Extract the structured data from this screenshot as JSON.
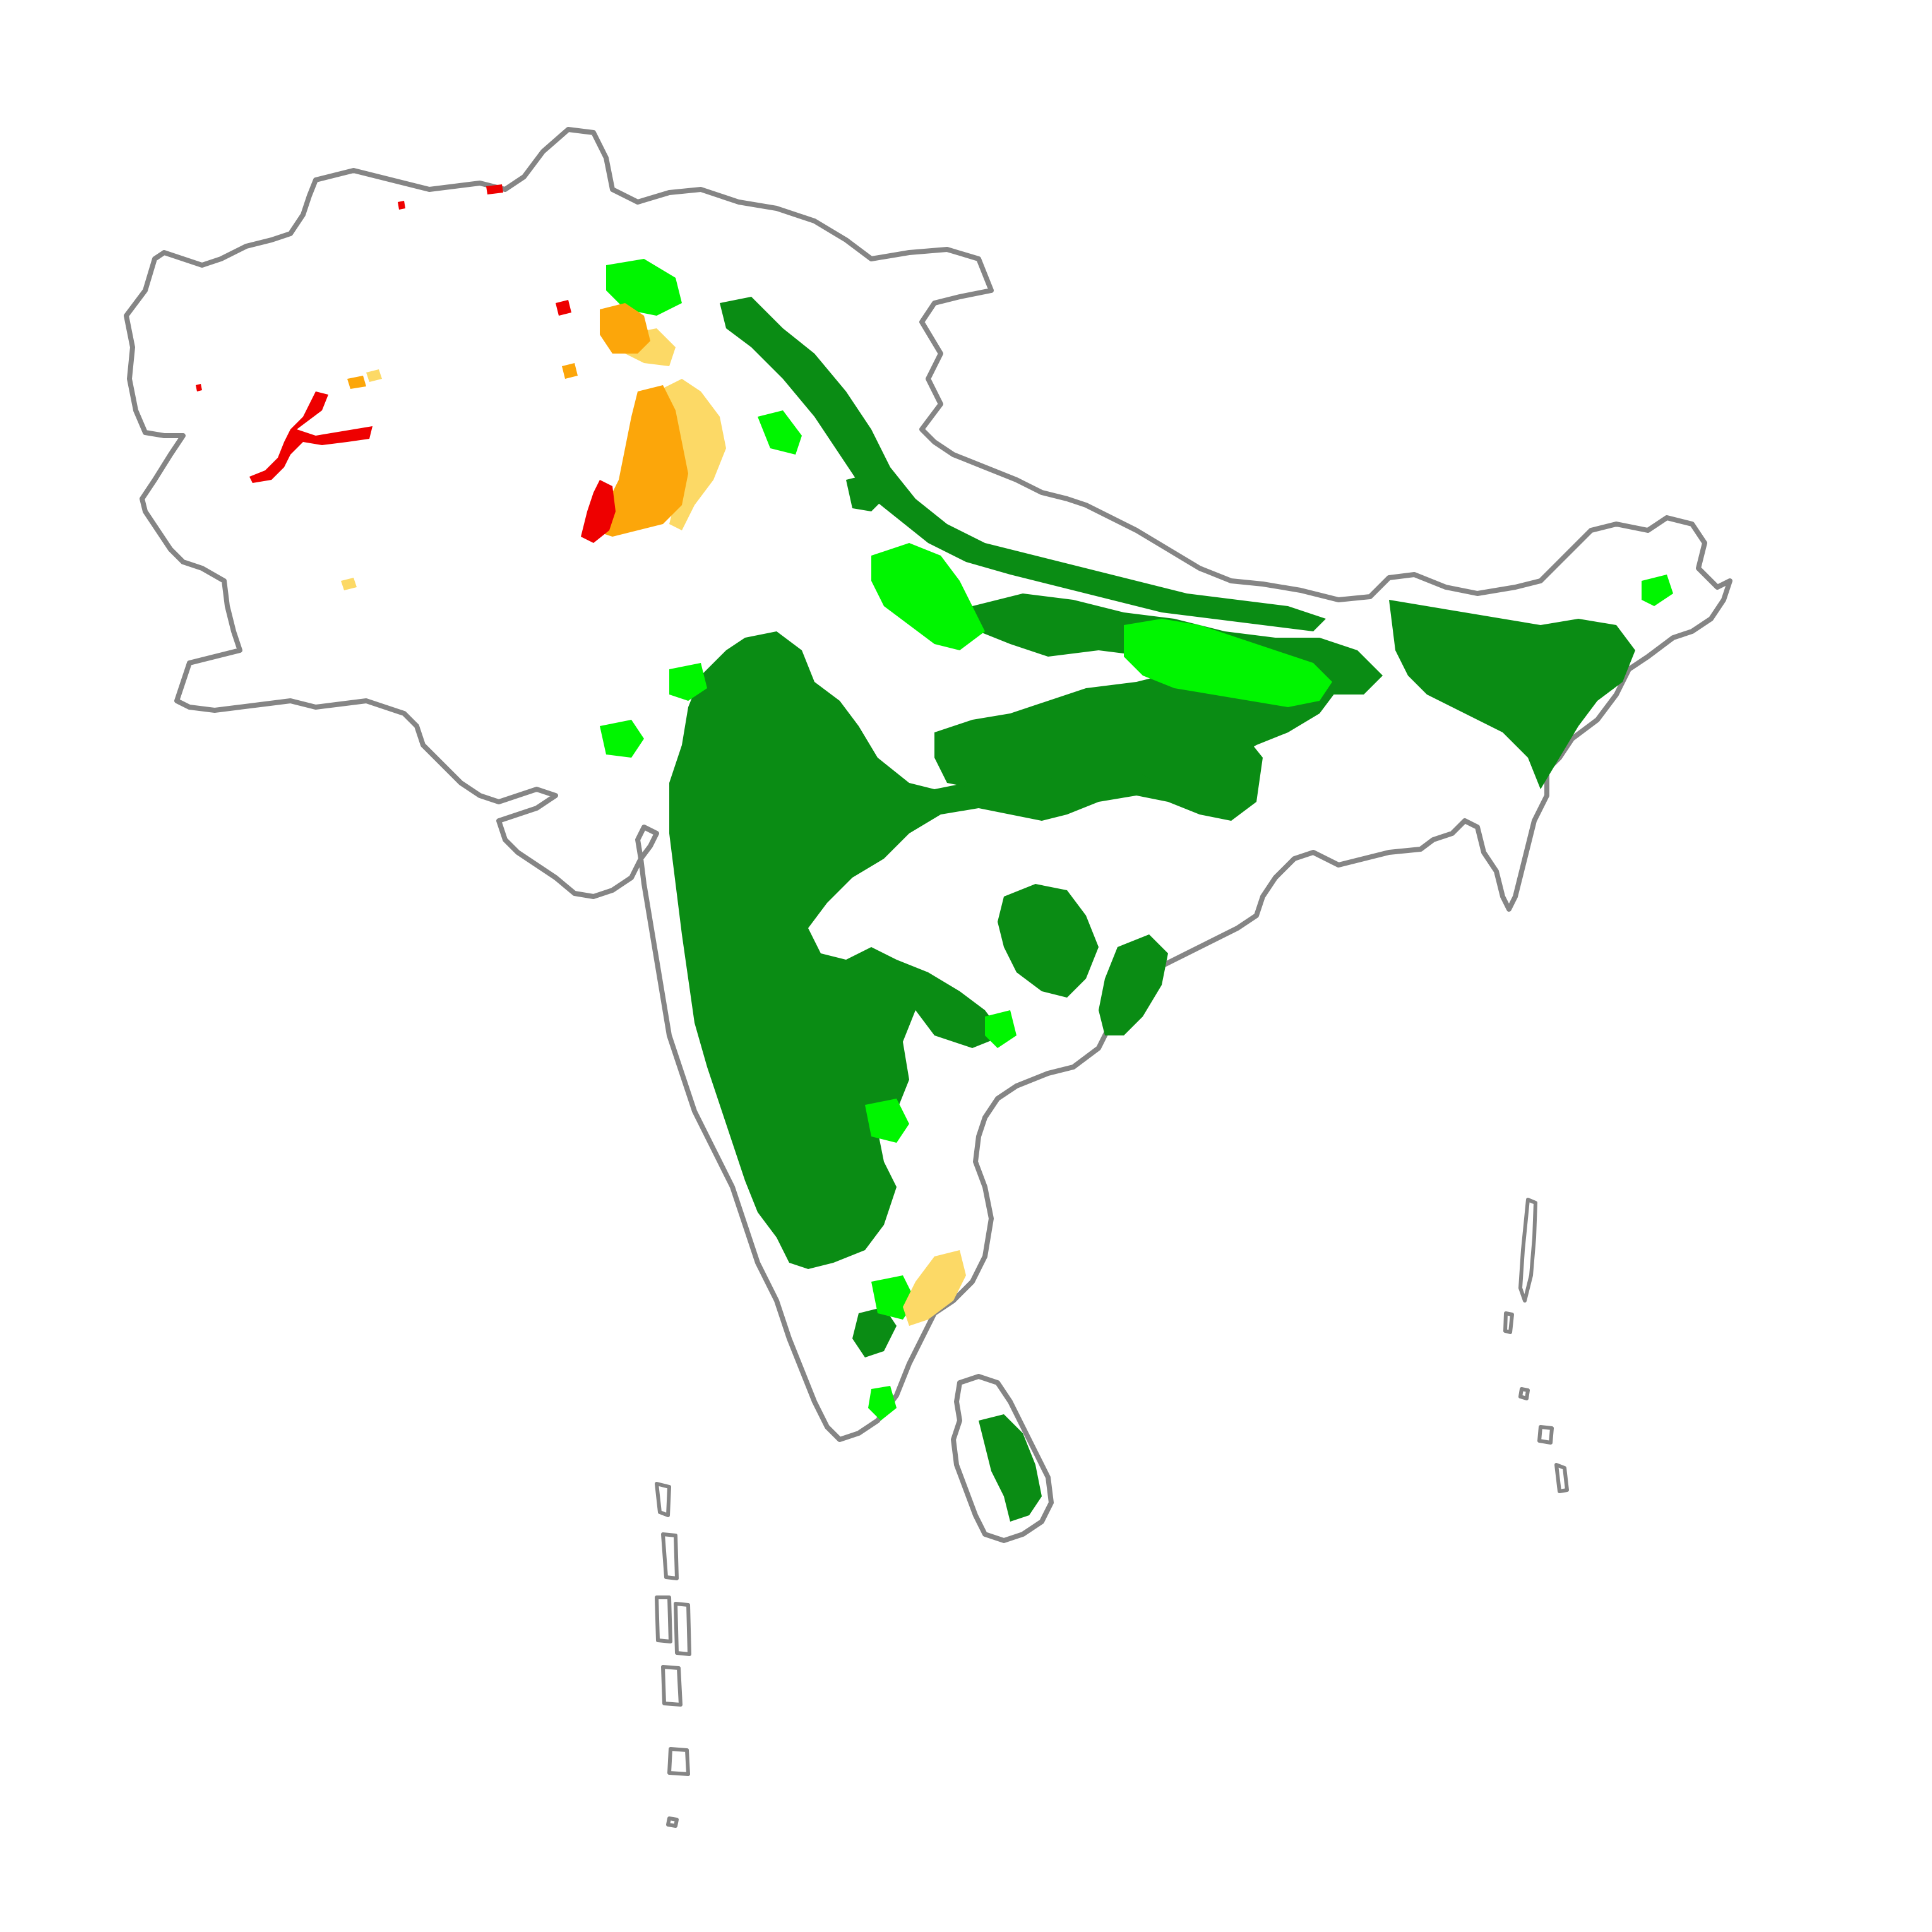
{
  "map": {
    "colors": {
      "outline": "#858585",
      "dark_green": "#0a8c14",
      "bright_green": "#00f500",
      "light_yellow": "#fcd966",
      "orange": "#fca60a",
      "red": "#ee0000",
      "background": "#ffffff"
    },
    "classes": [
      {
        "key": "dark_green",
        "color": "#0a8c14"
      },
      {
        "key": "bright_green",
        "color": "#00f500"
      },
      {
        "key": "light_yellow",
        "color": "#fcd966"
      },
      {
        "key": "orange",
        "color": "#fca60a"
      },
      {
        "key": "red",
        "color": "#ee0000"
      }
    ]
  }
}
